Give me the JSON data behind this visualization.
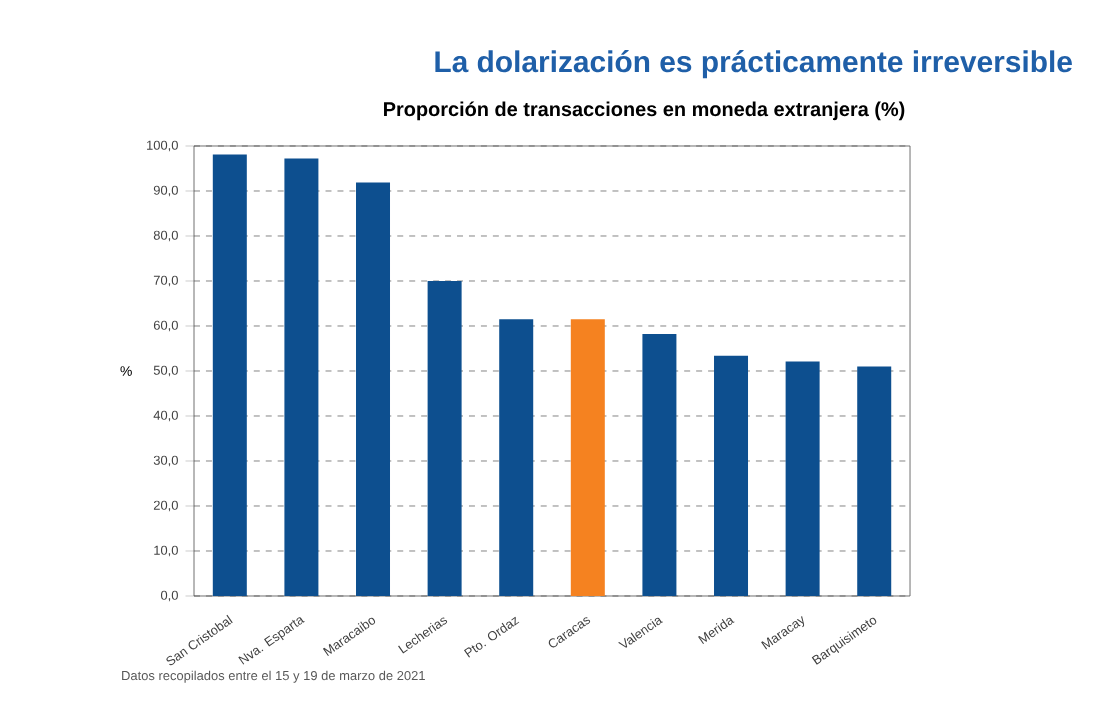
{
  "chart_data": {
    "type": "bar",
    "title": "La dolarización es prácticamente irreversible",
    "subtitle": "Proporción de transacciones en moneda extranjera (%)",
    "ylabel": "%",
    "categories": [
      "San Cristobal",
      "Nva. Esparta",
      "Maracaibo",
      "Lecherias",
      "Pto. Ordaz",
      "Caracas",
      "Valencia",
      "Merida",
      "Maracay",
      "Barquisimeto"
    ],
    "values": [
      98.1,
      97.2,
      91.9,
      70.0,
      61.5,
      61.5,
      58.2,
      53.4,
      52.1,
      51.0
    ],
    "colors": [
      "#0d4f8f",
      "#0d4f8f",
      "#0d4f8f",
      "#0d4f8f",
      "#0d4f8f",
      "#f58220",
      "#0d4f8f",
      "#0d4f8f",
      "#0d4f8f",
      "#0d4f8f"
    ],
    "ylim": [
      0,
      100
    ],
    "yticks": [
      {
        "value": 0,
        "label": "0,0"
      },
      {
        "value": 10,
        "label": "10,0"
      },
      {
        "value": 20,
        "label": "20,0"
      },
      {
        "value": 30,
        "label": "30,0"
      },
      {
        "value": 40,
        "label": "40,0"
      },
      {
        "value": 50,
        "label": "50,0"
      },
      {
        "value": 60,
        "label": "60,0"
      },
      {
        "value": 70,
        "label": "70,0"
      },
      {
        "value": 80,
        "label": "80,0"
      },
      {
        "value": 90,
        "label": "90,0"
      },
      {
        "value": 100,
        "label": "100,0"
      }
    ],
    "grid": "y",
    "annotations": [
      "Datos recopilados entre el 15 y 19 de marzo de 2021"
    ]
  }
}
